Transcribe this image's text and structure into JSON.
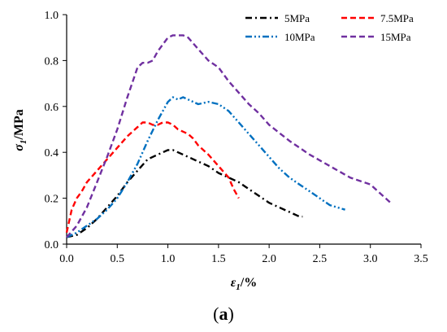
{
  "chart_data": {
    "type": "line",
    "title": "",
    "xlabel": {
      "symbol": "ε",
      "subscript": "1",
      "unit": "/%"
    },
    "ylabel": {
      "symbol": "σ",
      "subscript": "1",
      "unit": "/MPa"
    },
    "xlim": [
      0,
      3.5
    ],
    "ylim": [
      0,
      1.0
    ],
    "xticks": [
      "0.0",
      "0.5",
      "1.0",
      "1.5",
      "2.0",
      "2.5",
      "3.0",
      "3.5"
    ],
    "yticks": [
      "0.0",
      "0.2",
      "0.4",
      "0.6",
      "0.8",
      "1.0"
    ],
    "grid": false,
    "legend_position": "top-right",
    "series": [
      {
        "name": "5MPa",
        "color": "#000000",
        "dash": "dash-dot",
        "points": [
          [
            0.0,
            0.03
          ],
          [
            0.1,
            0.04
          ],
          [
            0.2,
            0.07
          ],
          [
            0.3,
            0.11
          ],
          [
            0.4,
            0.16
          ],
          [
            0.5,
            0.21
          ],
          [
            0.6,
            0.27
          ],
          [
            0.7,
            0.32
          ],
          [
            0.8,
            0.37
          ],
          [
            0.9,
            0.39
          ],
          [
            1.0,
            0.41
          ],
          [
            1.05,
            0.41
          ],
          [
            1.1,
            0.4
          ],
          [
            1.2,
            0.38
          ],
          [
            1.3,
            0.36
          ],
          [
            1.4,
            0.34
          ],
          [
            1.5,
            0.31
          ],
          [
            1.6,
            0.29
          ],
          [
            1.7,
            0.27
          ],
          [
            1.8,
            0.24
          ],
          [
            1.9,
            0.21
          ],
          [
            2.0,
            0.18
          ],
          [
            2.1,
            0.16
          ],
          [
            2.2,
            0.14
          ],
          [
            2.3,
            0.12
          ],
          [
            2.33,
            0.12
          ]
        ]
      },
      {
        "name": "7.5MPa",
        "color": "#ff0000",
        "dash": "dash",
        "points": [
          [
            0.0,
            0.05
          ],
          [
            0.05,
            0.15
          ],
          [
            0.1,
            0.2
          ],
          [
            0.15,
            0.23
          ],
          [
            0.2,
            0.27
          ],
          [
            0.3,
            0.32
          ],
          [
            0.4,
            0.37
          ],
          [
            0.5,
            0.42
          ],
          [
            0.6,
            0.47
          ],
          [
            0.7,
            0.51
          ],
          [
            0.75,
            0.53
          ],
          [
            0.8,
            0.53
          ],
          [
            0.85,
            0.52
          ],
          [
            0.9,
            0.52
          ],
          [
            0.95,
            0.53
          ],
          [
            1.0,
            0.53
          ],
          [
            1.05,
            0.52
          ],
          [
            1.1,
            0.5
          ],
          [
            1.2,
            0.48
          ],
          [
            1.25,
            0.46
          ],
          [
            1.3,
            0.43
          ],
          [
            1.4,
            0.39
          ],
          [
            1.5,
            0.34
          ],
          [
            1.6,
            0.29
          ],
          [
            1.65,
            0.24
          ],
          [
            1.7,
            0.2
          ]
        ]
      },
      {
        "name": "10MPa",
        "color": "#0070c0",
        "dash": "dash-dot-dot",
        "points": [
          [
            0.0,
            0.03
          ],
          [
            0.1,
            0.05
          ],
          [
            0.2,
            0.08
          ],
          [
            0.3,
            0.11
          ],
          [
            0.4,
            0.15
          ],
          [
            0.5,
            0.2
          ],
          [
            0.6,
            0.27
          ],
          [
            0.7,
            0.35
          ],
          [
            0.8,
            0.45
          ],
          [
            0.9,
            0.54
          ],
          [
            1.0,
            0.62
          ],
          [
            1.05,
            0.64
          ],
          [
            1.1,
            0.63
          ],
          [
            1.15,
            0.64
          ],
          [
            1.2,
            0.63
          ],
          [
            1.3,
            0.61
          ],
          [
            1.4,
            0.62
          ],
          [
            1.5,
            0.61
          ],
          [
            1.6,
            0.58
          ],
          [
            1.7,
            0.53
          ],
          [
            1.8,
            0.48
          ],
          [
            1.9,
            0.43
          ],
          [
            2.0,
            0.38
          ],
          [
            2.1,
            0.33
          ],
          [
            2.2,
            0.29
          ],
          [
            2.3,
            0.26
          ],
          [
            2.4,
            0.23
          ],
          [
            2.5,
            0.2
          ],
          [
            2.6,
            0.17
          ],
          [
            2.75,
            0.15
          ]
        ]
      },
      {
        "name": "15MPa",
        "color": "#7030a0",
        "dash": "dash",
        "points": [
          [
            0.0,
            0.03
          ],
          [
            0.1,
            0.08
          ],
          [
            0.2,
            0.16
          ],
          [
            0.3,
            0.27
          ],
          [
            0.4,
            0.38
          ],
          [
            0.5,
            0.5
          ],
          [
            0.6,
            0.64
          ],
          [
            0.7,
            0.77
          ],
          [
            0.75,
            0.79
          ],
          [
            0.8,
            0.79
          ],
          [
            0.85,
            0.8
          ],
          [
            0.9,
            0.84
          ],
          [
            0.95,
            0.87
          ],
          [
            1.0,
            0.9
          ],
          [
            1.05,
            0.91
          ],
          [
            1.1,
            0.91
          ],
          [
            1.15,
            0.91
          ],
          [
            1.2,
            0.9
          ],
          [
            1.3,
            0.85
          ],
          [
            1.4,
            0.8
          ],
          [
            1.5,
            0.77
          ],
          [
            1.6,
            0.71
          ],
          [
            1.7,
            0.66
          ],
          [
            1.8,
            0.61
          ],
          [
            1.9,
            0.57
          ],
          [
            2.0,
            0.52
          ],
          [
            2.2,
            0.45
          ],
          [
            2.4,
            0.39
          ],
          [
            2.6,
            0.34
          ],
          [
            2.8,
            0.29
          ],
          [
            3.0,
            0.26
          ],
          [
            3.1,
            0.22
          ],
          [
            3.2,
            0.18
          ]
        ]
      }
    ]
  },
  "panel_label": {
    "open": "(",
    "letter": "a",
    "close": ")"
  }
}
